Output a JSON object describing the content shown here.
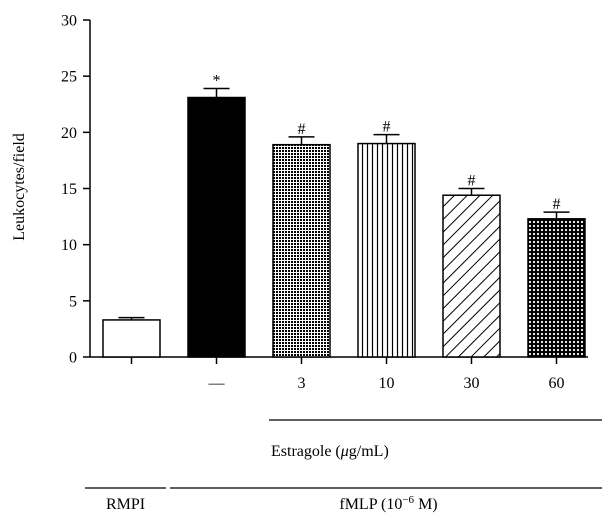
{
  "chart_data": {
    "type": "bar",
    "ylabel": "Leukocytes/field",
    "ylim": [
      0,
      30
    ],
    "yticks": [
      0,
      5,
      10,
      15,
      20,
      25,
      30
    ],
    "bars": [
      {
        "category": "",
        "value": 3.3,
        "error": 0.2,
        "fill": "white",
        "significance": ""
      },
      {
        "category": "—",
        "value": 23.1,
        "error": 0.8,
        "fill": "black",
        "significance": "*"
      },
      {
        "category": "3",
        "value": 18.9,
        "error": 0.7,
        "fill": "crosshatch",
        "significance": "#"
      },
      {
        "category": "10",
        "value": 19.0,
        "error": 0.8,
        "fill": "vertical-lines",
        "significance": "#"
      },
      {
        "category": "30",
        "value": 14.4,
        "error": 0.6,
        "fill": "diagonal-lines",
        "significance": "#"
      },
      {
        "category": "60",
        "value": 12.3,
        "error": 0.6,
        "fill": "dots",
        "significance": "#"
      }
    ],
    "groups": [
      {
        "label_parts": [
          "Estragole (",
          "μ",
          "g/mL)"
        ],
        "spans": [
          2,
          5
        ],
        "level": 1
      },
      {
        "label_parts": [
          "RMPI"
        ],
        "spans": [
          0,
          0
        ],
        "level": 2
      },
      {
        "label_parts": [
          "fMLP (10",
          "−6",
          " M)"
        ],
        "spans": [
          1,
          5
        ],
        "level": 2
      }
    ]
  }
}
